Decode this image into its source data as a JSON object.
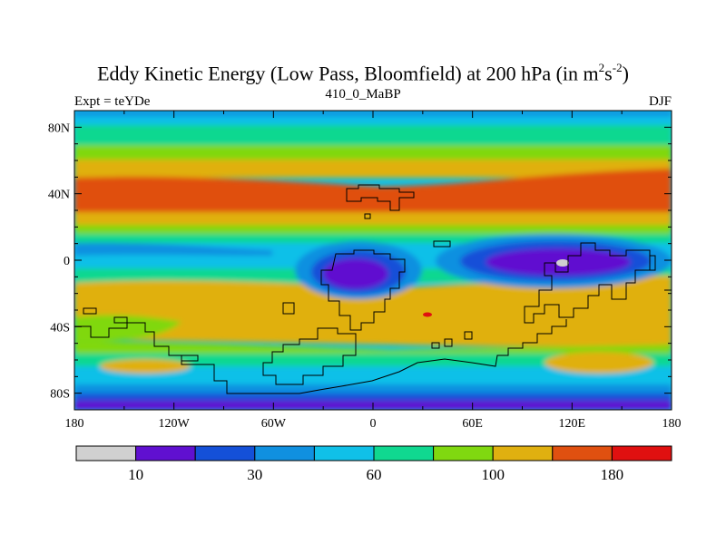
{
  "header": {
    "title_main": "Eddy Kinetic Energy (Low Pass, Bloomfield) at 200 hPa (in m",
    "title_sup1": "2",
    "title_s": "s",
    "title_sup2": "-2",
    "title_end": ")",
    "left_string": "Expt = teYDe",
    "center_string": "410_0_MaBP",
    "right_string": "DJF"
  },
  "map": {
    "lon_ticks": [
      "180",
      "120W",
      "60W",
      "0",
      "60E",
      "120E",
      "180"
    ],
    "lat_ticks": [
      "80N",
      "40N",
      "0",
      "40S",
      "80S"
    ],
    "lat_values": [
      80,
      40,
      0,
      -40,
      -80
    ],
    "lon_values": [
      -180,
      -120,
      -60,
      0,
      60,
      120,
      180
    ]
  },
  "colorbar": {
    "colors": [
      "#d0d0d0",
      "#6010d0",
      "#1450d8",
      "#1090e0",
      "#10c0e8",
      "#10d890",
      "#80d810",
      "#e0b010",
      "#e05010",
      "#e01010"
    ],
    "labels": [
      "10",
      "30",
      "60",
      "100",
      "180"
    ],
    "label_boundaries": [
      1,
      3,
      5,
      7,
      9
    ]
  }
}
